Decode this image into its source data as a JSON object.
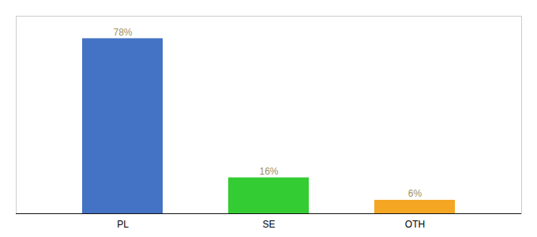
{
  "chart_data": {
    "type": "bar",
    "categories": [
      "PL",
      "SE",
      "OTH"
    ],
    "values": [
      78,
      16,
      6
    ],
    "value_labels": [
      "78%",
      "16%",
      "6%"
    ],
    "colors": [
      "#4472c4",
      "#33cc33",
      "#f5a623"
    ],
    "ylim": [
      0,
      88
    ],
    "data_labels": true,
    "tick_labels": "x"
  }
}
